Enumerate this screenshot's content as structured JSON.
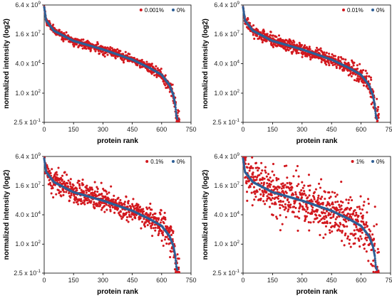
{
  "figure": {
    "panels": [
      "top-left",
      "top-right",
      "bottom-left",
      "bottom-right"
    ]
  },
  "chart_data": [
    {
      "type": "scatter",
      "xlabel": "protein rank",
      "ylabel": "normalized intensity (log2)",
      "x_ticks": [
        "0",
        "150",
        "300",
        "450",
        "600",
        "750"
      ],
      "y_ticks": [
        {
          "base": "6.4 x 10",
          "exp": "9"
        },
        {
          "base": "1.6 x 10",
          "exp": "7"
        },
        {
          "base": "4.0 x 10",
          "exp": "4"
        },
        {
          "base": "1.0 x 10",
          "exp": "2"
        },
        {
          "base": "2.5 x 10",
          "exp": "-1"
        }
      ],
      "xlim": [
        0,
        750
      ],
      "ylim_log2": [
        -2,
        32.6
      ],
      "grid": false,
      "legend_position": "top-right",
      "series": [
        {
          "name": "0.001%",
          "color": "#d2181e",
          "noise_sd_log2": 0.6,
          "extra_noise_tail": 0.8,
          "x_end": 690
        },
        {
          "name": "0%",
          "color": "#2e5f96",
          "noise_sd_log2": 0,
          "x_end": 680
        }
      ],
      "reference_curve_x": [
        0,
        10,
        50,
        150,
        300,
        450,
        540,
        600,
        640,
        660,
        670,
        675,
        680
      ],
      "reference_curve_log2": [
        32.0,
        28.0,
        25.0,
        22.0,
        19.5,
        16.5,
        14.0,
        12.0,
        9.0,
        6.0,
        3.0,
        0.0,
        -1.0
      ]
    },
    {
      "type": "scatter",
      "xlabel": "protein rank",
      "ylabel": "normalized intensity (log2)",
      "x_ticks": [
        "0",
        "150",
        "300",
        "450",
        "600",
        "750"
      ],
      "y_ticks": [
        {
          "base": "6.4 x 10",
          "exp": "9"
        },
        {
          "base": "1.6 x 10",
          "exp": "7"
        },
        {
          "base": "4.0 x 10",
          "exp": "4"
        },
        {
          "base": "1.0 x 10",
          "exp": "2"
        },
        {
          "base": "2.5 x 10",
          "exp": "-1"
        }
      ],
      "xlim": [
        0,
        750
      ],
      "ylim_log2": [
        -2,
        32.6
      ],
      "grid": false,
      "legend_position": "top-right",
      "series": [
        {
          "name": "0.01%",
          "color": "#d2181e",
          "noise_sd_log2": 0.9,
          "extra_noise_tail": 1.0,
          "x_end": 690
        },
        {
          "name": "0%",
          "color": "#2e5f96",
          "noise_sd_log2": 0,
          "x_end": 680
        }
      ],
      "reference_curve_x": [
        0,
        10,
        50,
        150,
        300,
        450,
        540,
        600,
        640,
        660,
        670,
        675,
        680
      ],
      "reference_curve_log2": [
        32.0,
        28.0,
        25.0,
        22.0,
        19.5,
        16.5,
        14.0,
        12.0,
        9.0,
        6.0,
        3.0,
        0.0,
        -1.0
      ]
    },
    {
      "type": "scatter",
      "xlabel": "protein rank",
      "ylabel": "normalized intensity (log2)",
      "x_ticks": [
        "0",
        "150",
        "300",
        "450",
        "600",
        "750"
      ],
      "y_ticks": [
        {
          "base": "6.4 x 10",
          "exp": "9"
        },
        {
          "base": "1.6 x 10",
          "exp": "7"
        },
        {
          "base": "4.0 x 10",
          "exp": "4"
        },
        {
          "base": "1.0 x 10",
          "exp": "2"
        },
        {
          "base": "2.5 x 10",
          "exp": "-1"
        }
      ],
      "xlim": [
        0,
        750
      ],
      "ylim_log2": [
        -2,
        32.6
      ],
      "grid": false,
      "legend_position": "top-right",
      "series": [
        {
          "name": "0.1%",
          "color": "#d2181e",
          "noise_sd_log2": 1.7,
          "extra_noise_tail": 1.5,
          "x_end": 690
        },
        {
          "name": "0%",
          "color": "#2e5f96",
          "noise_sd_log2": 0,
          "x_end": 680
        }
      ],
      "reference_curve_x": [
        0,
        10,
        50,
        150,
        300,
        450,
        540,
        600,
        640,
        660,
        670,
        675,
        680
      ],
      "reference_curve_log2": [
        32.0,
        28.0,
        25.0,
        22.0,
        19.5,
        16.5,
        14.0,
        12.0,
        9.0,
        6.0,
        3.0,
        0.0,
        -1.0
      ]
    },
    {
      "type": "scatter",
      "xlabel": "protein rank",
      "ylabel": "normalized intensity (log2)",
      "x_ticks": [
        "0",
        "150",
        "300",
        "450",
        "600",
        "750"
      ],
      "y_ticks": [
        {
          "base": "6.4 x 10",
          "exp": "9"
        },
        {
          "base": "1.6 x 10",
          "exp": "7"
        },
        {
          "base": "4.0 x 10",
          "exp": "4"
        },
        {
          "base": "1.0 x 10",
          "exp": "2"
        },
        {
          "base": "2.5 x 10",
          "exp": "-1"
        }
      ],
      "xlim": [
        0,
        750
      ],
      "ylim_log2": [
        -2,
        32.6
      ],
      "grid": false,
      "legend_position": "top-right",
      "series": [
        {
          "name": "1%",
          "color": "#d2181e",
          "noise_sd_log2": 3.4,
          "extra_noise_tail": 1.0,
          "x_end": 690
        },
        {
          "name": "0%",
          "color": "#2e5f96",
          "noise_sd_log2": 0,
          "x_end": 680
        }
      ],
      "reference_curve_x": [
        0,
        10,
        50,
        150,
        300,
        450,
        540,
        600,
        640,
        660,
        670,
        675,
        680
      ],
      "reference_curve_log2": [
        32.0,
        28.0,
        25.0,
        22.0,
        19.5,
        16.5,
        14.0,
        12.0,
        9.0,
        6.0,
        3.0,
        0.0,
        -1.0
      ]
    }
  ]
}
